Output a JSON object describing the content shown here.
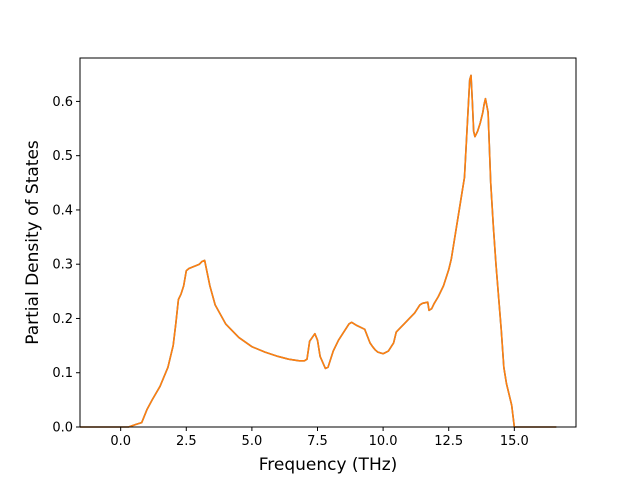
{
  "chart_data": {
    "type": "line",
    "title": "",
    "xlabel": "Frequency (THz)",
    "ylabel": "Partial Density of States",
    "xlim": [
      -1.55,
      17.35
    ],
    "ylim": [
      0.0,
      0.68
    ],
    "xticks": [
      0.0,
      2.5,
      5.0,
      7.5,
      10.0,
      12.5,
      15.0
    ],
    "xtick_labels": [
      "0.0",
      "2.5",
      "5.0",
      "7.5",
      "10.0",
      "12.5",
      "15.0"
    ],
    "yticks": [
      0.0,
      0.1,
      0.2,
      0.3,
      0.4,
      0.5,
      0.6
    ],
    "ytick_labels": [
      "0.0",
      "0.1",
      "0.2",
      "0.3",
      "0.4",
      "0.5",
      "0.6"
    ],
    "grid": false,
    "legend": "none",
    "series": [
      {
        "color": "#1f77b4",
        "x": [
          -1.55,
          -0.5,
          0.0,
          0.3,
          0.6,
          0.8,
          0.9,
          1.0,
          1.2,
          1.5,
          1.8,
          2.0,
          2.1,
          2.2,
          2.3,
          2.4,
          2.5,
          2.6,
          2.8,
          3.0,
          3.1,
          3.2,
          3.4,
          3.6,
          4.0,
          4.5,
          5.0,
          5.5,
          6.0,
          6.4,
          6.8,
          7.0,
          7.1,
          7.2,
          7.3,
          7.4,
          7.5,
          7.6,
          7.8,
          7.9,
          8.1,
          8.3,
          8.5,
          8.7,
          8.8,
          8.9,
          9.0,
          9.3,
          9.5,
          9.6,
          9.7,
          9.8,
          10.0,
          10.2,
          10.4,
          10.5,
          10.6,
          10.8,
          11.0,
          11.2,
          11.4,
          11.5,
          11.7,
          11.75,
          11.85,
          11.95,
          12.1,
          12.3,
          12.5,
          12.6,
          12.7,
          12.8,
          12.9,
          13.0,
          13.1,
          13.2,
          13.3,
          13.35,
          13.4,
          13.45,
          13.5,
          13.6,
          13.7,
          13.8,
          13.85,
          13.9,
          14.0,
          14.1,
          14.2,
          14.3,
          14.4,
          14.5,
          14.6,
          14.7,
          14.8,
          14.9,
          15.0,
          15.05,
          15.1,
          15.3,
          16.0,
          16.6
        ],
        "y": [
          0.0,
          0.0,
          0.0,
          0.0,
          0.005,
          0.008,
          0.02,
          0.032,
          0.05,
          0.075,
          0.11,
          0.15,
          0.19,
          0.235,
          0.245,
          0.26,
          0.288,
          0.292,
          0.296,
          0.3,
          0.305,
          0.307,
          0.26,
          0.225,
          0.19,
          0.165,
          0.148,
          0.138,
          0.13,
          0.125,
          0.122,
          0.122,
          0.125,
          0.158,
          0.165,
          0.172,
          0.16,
          0.13,
          0.108,
          0.11,
          0.14,
          0.16,
          0.175,
          0.19,
          0.193,
          0.19,
          0.187,
          0.18,
          0.155,
          0.148,
          0.142,
          0.138,
          0.135,
          0.14,
          0.155,
          0.175,
          0.18,
          0.19,
          0.2,
          0.21,
          0.225,
          0.228,
          0.23,
          0.215,
          0.218,
          0.228,
          0.24,
          0.26,
          0.29,
          0.31,
          0.34,
          0.37,
          0.4,
          0.43,
          0.46,
          0.55,
          0.64,
          0.648,
          0.6,
          0.545,
          0.535,
          0.545,
          0.56,
          0.58,
          0.595,
          0.605,
          0.58,
          0.45,
          0.37,
          0.3,
          0.24,
          0.18,
          0.11,
          0.08,
          0.06,
          0.04,
          0.0,
          0.0,
          0.0,
          0.0,
          0.0,
          0.0
        ]
      },
      {
        "color": "#ff7f0e",
        "x": [
          -1.55,
          -0.5,
          0.0,
          0.3,
          0.6,
          0.8,
          0.9,
          1.0,
          1.2,
          1.5,
          1.8,
          2.0,
          2.1,
          2.2,
          2.3,
          2.4,
          2.5,
          2.6,
          2.8,
          3.0,
          3.1,
          3.2,
          3.4,
          3.6,
          4.0,
          4.5,
          5.0,
          5.5,
          6.0,
          6.4,
          6.8,
          7.0,
          7.1,
          7.2,
          7.3,
          7.4,
          7.5,
          7.6,
          7.8,
          7.9,
          8.1,
          8.3,
          8.5,
          8.7,
          8.8,
          8.9,
          9.0,
          9.3,
          9.5,
          9.6,
          9.7,
          9.8,
          10.0,
          10.2,
          10.4,
          10.5,
          10.6,
          10.8,
          11.0,
          11.2,
          11.4,
          11.5,
          11.7,
          11.75,
          11.85,
          11.95,
          12.1,
          12.3,
          12.5,
          12.6,
          12.7,
          12.8,
          12.9,
          13.0,
          13.1,
          13.2,
          13.3,
          13.35,
          13.4,
          13.45,
          13.5,
          13.6,
          13.7,
          13.8,
          13.85,
          13.9,
          14.0,
          14.1,
          14.2,
          14.3,
          14.4,
          14.5,
          14.6,
          14.7,
          14.8,
          14.9,
          15.0,
          15.05,
          15.1,
          15.3,
          16.0,
          16.6
        ],
        "y": [
          0.0,
          0.0,
          0.0,
          0.0,
          0.005,
          0.008,
          0.02,
          0.032,
          0.05,
          0.075,
          0.11,
          0.15,
          0.19,
          0.235,
          0.245,
          0.26,
          0.288,
          0.292,
          0.296,
          0.3,
          0.305,
          0.307,
          0.26,
          0.225,
          0.19,
          0.165,
          0.148,
          0.138,
          0.13,
          0.125,
          0.122,
          0.122,
          0.125,
          0.158,
          0.165,
          0.172,
          0.16,
          0.13,
          0.108,
          0.11,
          0.14,
          0.16,
          0.175,
          0.19,
          0.193,
          0.19,
          0.187,
          0.18,
          0.155,
          0.148,
          0.142,
          0.138,
          0.135,
          0.14,
          0.155,
          0.175,
          0.18,
          0.19,
          0.2,
          0.21,
          0.225,
          0.228,
          0.23,
          0.215,
          0.218,
          0.228,
          0.24,
          0.26,
          0.29,
          0.31,
          0.34,
          0.37,
          0.4,
          0.43,
          0.46,
          0.55,
          0.64,
          0.648,
          0.6,
          0.545,
          0.535,
          0.545,
          0.56,
          0.58,
          0.595,
          0.605,
          0.58,
          0.45,
          0.37,
          0.3,
          0.24,
          0.18,
          0.11,
          0.08,
          0.06,
          0.04,
          0.0,
          0.0,
          0.0,
          0.0,
          0.0,
          0.0
        ]
      }
    ]
  }
}
